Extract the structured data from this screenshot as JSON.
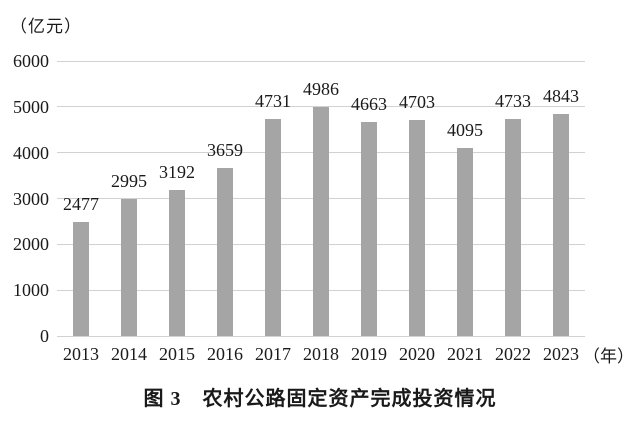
{
  "figure": {
    "caption": "图 3　农村公路固定资产完成投资情况"
  },
  "chart_data": {
    "type": "bar",
    "title": "图 3　农村公路固定资产完成投资情况",
    "y_axis_unit_label": "（亿元）",
    "x_axis_unit_label": "（年）",
    "categories": [
      "2013",
      "2014",
      "2015",
      "2016",
      "2017",
      "2018",
      "2019",
      "2020",
      "2021",
      "2022",
      "2023"
    ],
    "values": [
      2477,
      2995,
      3192,
      3659,
      4731,
      4986,
      4663,
      4703,
      4095,
      4733,
      4843
    ],
    "xlabel": "年",
    "ylabel": "亿元",
    "ylim": [
      0,
      6000
    ],
    "yticks": [
      0,
      1000,
      2000,
      3000,
      4000,
      5000,
      6000
    ],
    "grid": true,
    "legend": "none",
    "data_labels": true,
    "bar_color": "#a5a5a5",
    "gridline_color": "#d2d2d2",
    "text_color": "#1a1a1a",
    "background_color": "#ffffff"
  }
}
